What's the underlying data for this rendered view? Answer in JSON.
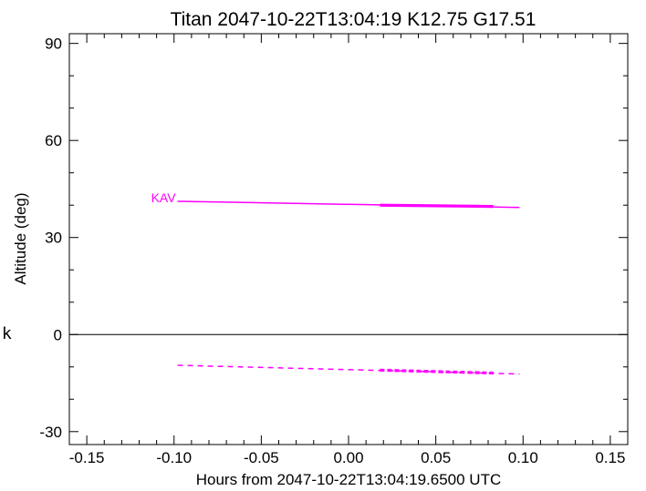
{
  "chart_data": {
    "type": "line",
    "title": "Titan 2047-10-22T13:04:19  K12.75  G17.51",
    "xlabel": "Hours from 2047-10-22T13:04:19.6500 UTC",
    "ylabel": "Altitude (deg)",
    "side_mark": "k",
    "xlim": [
      -0.16,
      0.16
    ],
    "ylim": [
      -34,
      93
    ],
    "x_ticks": [
      -0.15,
      -0.1,
      -0.05,
      0.0,
      0.05,
      0.1,
      0.15
    ],
    "x_tick_labels": [
      "-0.15",
      "-0.10",
      "-0.05",
      "0.00",
      "0.05",
      "0.10",
      "0.15"
    ],
    "y_ticks": [
      -30,
      0,
      30,
      60,
      90
    ],
    "y_tick_labels": [
      "-30",
      "0",
      "30",
      "60",
      "90"
    ],
    "zero_line": 0,
    "series_color": "#ff00ff",
    "series": [
      {
        "name": "KAV",
        "style": "solid",
        "x": [
          -0.098,
          0.098
        ],
        "y": [
          41.2,
          39.3
        ],
        "highlight": {
          "x": [
            0.018,
            0.083
          ],
          "y": [
            40.0,
            39.6
          ]
        }
      },
      {
        "name": "",
        "style": "dashed",
        "x": [
          -0.098,
          0.098
        ],
        "y": [
          -9.5,
          -12.2
        ],
        "highlight": {
          "x": [
            0.018,
            0.083
          ],
          "y": [
            -11.0,
            -11.9
          ]
        }
      }
    ]
  }
}
